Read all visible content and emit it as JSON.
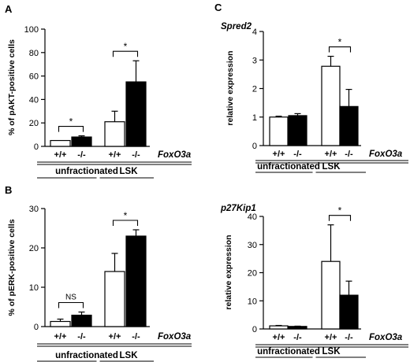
{
  "chart_data": [
    {
      "panel": "A",
      "type": "bar",
      "title": "",
      "ylabel": "% of pAKT-positive cells",
      "ylim": [
        0,
        100
      ],
      "yticks": [
        0,
        20,
        40,
        60,
        80,
        100
      ],
      "gene_label": "FoxO3a",
      "groups": [
        "unfractionated",
        "LSK"
      ],
      "categories": [
        "+/+",
        "-/-",
        "+/+",
        "-/-"
      ],
      "fills": [
        "white",
        "black",
        "white",
        "black"
      ],
      "values": [
        5,
        8,
        21,
        55
      ],
      "errors": [
        0,
        1,
        9,
        18
      ],
      "significance": [
        {
          "pair": [
            0,
            1
          ],
          "label": "*"
        },
        {
          "pair": [
            2,
            3
          ],
          "label": "*"
        }
      ]
    },
    {
      "panel": "B",
      "type": "bar",
      "title": "",
      "ylabel": "% of pERK-positive cells",
      "ylim": [
        0,
        30
      ],
      "yticks": [
        0,
        10,
        20,
        30
      ],
      "gene_label": "FoxO3a",
      "groups": [
        "unfractionated",
        "LSK"
      ],
      "categories": [
        "+/+",
        "-/-",
        "+/+",
        "-/-"
      ],
      "fills": [
        "white",
        "black",
        "white",
        "black"
      ],
      "values": [
        1.3,
        2.9,
        14,
        23
      ],
      "errors": [
        0.6,
        0.8,
        4.6,
        1.6
      ],
      "significance": [
        {
          "pair": [
            0,
            1
          ],
          "label": "NS"
        },
        {
          "pair": [
            2,
            3
          ],
          "label": "*"
        }
      ]
    },
    {
      "panel": "C",
      "type": "bar",
      "title": "Spred2",
      "ylabel": "relative expression",
      "ylim": [
        0,
        4
      ],
      "yticks": [
        0,
        1,
        2,
        3,
        4
      ],
      "gene_label": "FoxO3a",
      "groups": [
        "unfractionated",
        "LSK"
      ],
      "categories": [
        "+/+",
        "-/-",
        "+/+",
        "-/-"
      ],
      "fills": [
        "white",
        "black",
        "white",
        "black"
      ],
      "values": [
        1.0,
        1.05,
        2.78,
        1.37
      ],
      "errors": [
        0.03,
        0.07,
        0.35,
        0.6
      ],
      "significance": [
        {
          "pair": [
            2,
            3
          ],
          "label": "*"
        }
      ]
    },
    {
      "panel": "",
      "type": "bar",
      "title": "p27Kip1",
      "ylabel": "relative expression",
      "ylim": [
        0,
        40
      ],
      "yticks": [
        0,
        10,
        20,
        30,
        40
      ],
      "gene_label": "FoxO3a",
      "groups": [
        "unfractionated",
        "LSK"
      ],
      "categories": [
        "+/+",
        "-/-",
        "+/+",
        "-/-"
      ],
      "fills": [
        "white",
        "black",
        "white",
        "black"
      ],
      "values": [
        1.1,
        0.9,
        24,
        12
      ],
      "errors": [
        0.15,
        0.1,
        13,
        5
      ],
      "significance": [
        {
          "pair": [
            2,
            3
          ],
          "label": "*"
        }
      ]
    }
  ]
}
